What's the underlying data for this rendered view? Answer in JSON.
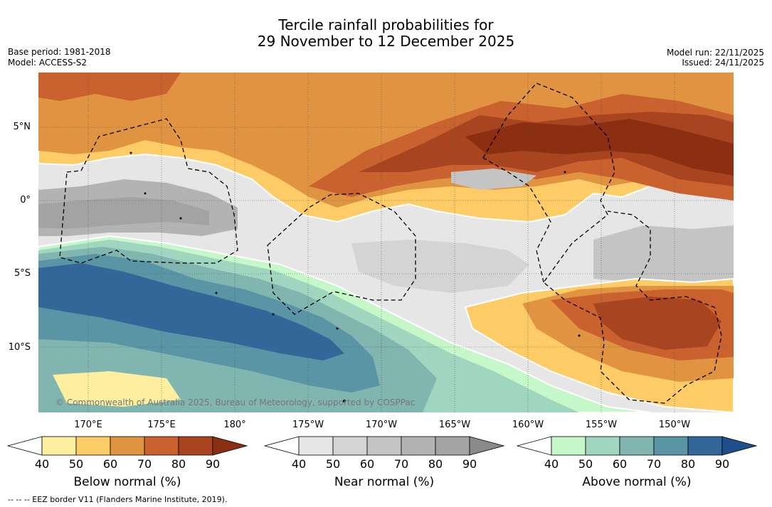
{
  "title": {
    "line1": "Tercile rainfall probabilities for",
    "line2": "29 November to 12 December 2025"
  },
  "info_left": {
    "base_period": "Base period: 1981-2018",
    "model": "Model: ACCESS-S2"
  },
  "info_right": {
    "model_run": "Model run: 22/11/2025",
    "issued": "Issued: 24/11/2025"
  },
  "lat_labels": [
    "5°N",
    "0°",
    "5°S",
    "10°S"
  ],
  "lon_labels": [
    "170°E",
    "175°E",
    "180°",
    "175°W",
    "170°W",
    "165°W",
    "160°W",
    "155°W",
    "150°W"
  ],
  "credit": "© Commonwealth of Australia 2025, Bureau of Meteorology, supported by COSPPac",
  "colorbars": [
    {
      "title": "Below normal (%)",
      "ticks": [
        "40",
        "50",
        "60",
        "70",
        "80",
        "90"
      ],
      "colors": [
        "#ffffff",
        "#feeea0",
        "#fdcc66",
        "#e09442",
        "#c9622f",
        "#a8441f",
        "#8c2e12"
      ]
    },
    {
      "title": "Near normal (%)",
      "ticks": [
        "40",
        "50",
        "60",
        "70",
        "80",
        "90"
      ],
      "colors": [
        "#ffffff",
        "#e6e6e6",
        "#d4d4d4",
        "#c4c4c4",
        "#b3b3b3",
        "#a3a3a3",
        "#8a8a8a"
      ]
    },
    {
      "title": "Above normal (%)",
      "ticks": [
        "40",
        "50",
        "60",
        "70",
        "80",
        "90"
      ],
      "colors": [
        "#ffffff",
        "#c6f7c9",
        "#a0d6bf",
        "#80b5b0",
        "#5a95a6",
        "#336699",
        "#1f4f8a"
      ]
    }
  ],
  "eez_note": "--  --  -- EEZ border V11 (Flanders Marine Institute, 2019)."
}
